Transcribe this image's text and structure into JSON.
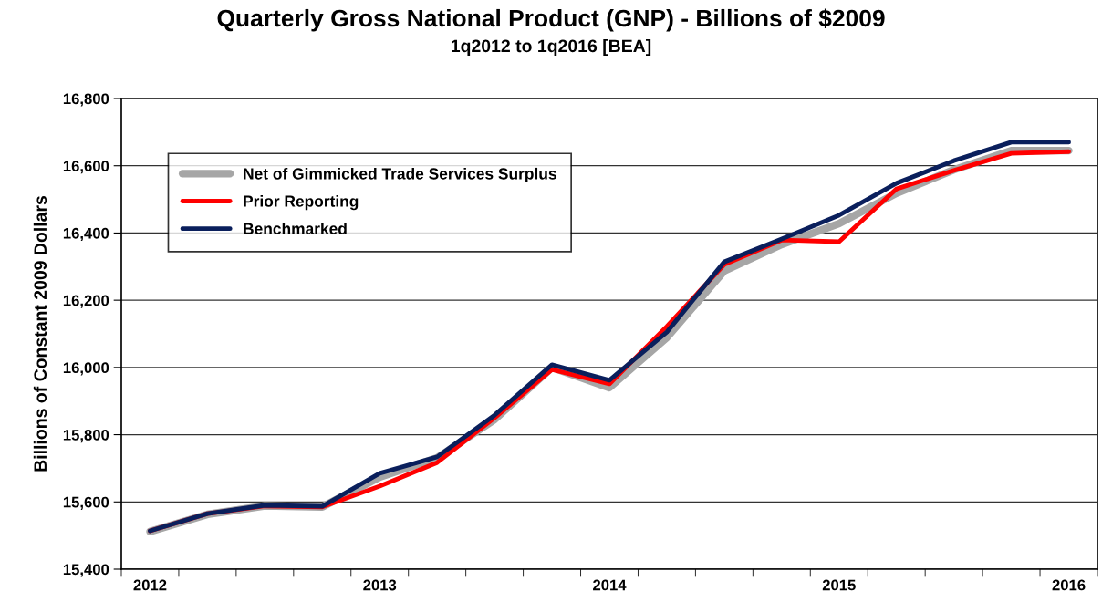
{
  "chart_data": {
    "type": "line",
    "title": "Quarterly Gross National Product (GNP) - Billions of $2009",
    "subtitle": "1q2012 to 1q2016 [BEA]",
    "ylabel": "Billions of Constant 2009 Dollars",
    "categories": [
      "2012",
      null,
      null,
      null,
      "2013",
      null,
      null,
      null,
      "2014",
      null,
      null,
      null,
      "2015",
      null,
      null,
      null,
      "2016"
    ],
    "series": [
      {
        "name": "Net of Gimmicked Trade Services Surplus",
        "color": "#a6a6a6",
        "values": [
          15512,
          15563,
          15588,
          15585,
          15674,
          15731,
          15845,
          16000,
          15940,
          16089,
          16287,
          16366,
          16428,
          16518,
          16588,
          16645,
          16645
        ]
      },
      {
        "name": "Prior Reporting",
        "color": "#ff0000",
        "values": [
          15514,
          15565,
          15588,
          15585,
          15647,
          15717,
          15850,
          15994,
          15951,
          16122,
          16306,
          16379,
          16374,
          16531,
          16586,
          16637,
          16642
        ]
      },
      {
        "name": "Benchmarked",
        "color": "#0a1f5c",
        "values": [
          15514,
          15565,
          15590,
          15587,
          15685,
          15734,
          15858,
          16008,
          15962,
          16105,
          16314,
          16382,
          16453,
          16548,
          16615,
          16670,
          16670
        ]
      }
    ],
    "ylim": [
      15400,
      16800
    ],
    "yticks": [
      {
        "value": 15400,
        "label": "15,400"
      },
      {
        "value": 15600,
        "label": "15,600"
      },
      {
        "value": 15800,
        "label": "15,800"
      },
      {
        "value": 16000,
        "label": "16,000"
      },
      {
        "value": 16200,
        "label": "16,200"
      },
      {
        "value": 16400,
        "label": "16,400"
      },
      {
        "value": 16600,
        "label": "16,600"
      },
      {
        "value": 16800,
        "label": "16,800"
      }
    ],
    "grid": "y",
    "legend": "top left",
    "marker": "none",
    "line_style": "solid"
  }
}
